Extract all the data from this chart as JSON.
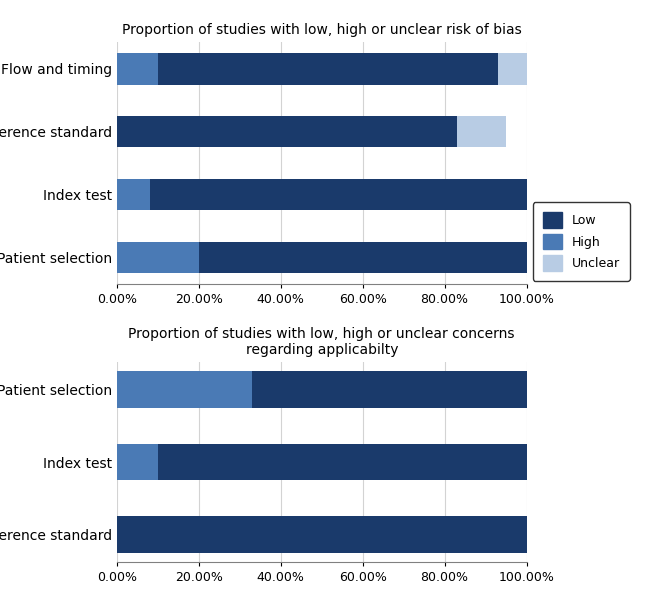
{
  "top_title": "Proportion of studies with low, high or unclear risk of bias",
  "bottom_title": "Proportion of studies with low, high or unclear concerns\nregarding applicabilty",
  "top_categories": [
    "Flow and timing",
    "Reference standard",
    "Index test",
    "Patient selection"
  ],
  "bottom_categories": [
    "Patient selection",
    "Index test",
    "Reference standard"
  ],
  "top_data": {
    "High": [
      10,
      0,
      8,
      20
    ],
    "Low": [
      83,
      83,
      92,
      80
    ],
    "Unclear": [
      7,
      12,
      0,
      0
    ]
  },
  "bottom_data": {
    "High": [
      33,
      10,
      0
    ],
    "Low": [
      67,
      90,
      100
    ],
    "Unclear": [
      0,
      0,
      0
    ]
  },
  "color_low": "#1a3a6b",
  "color_high": "#4a7ab5",
  "color_unclear": "#b8cce4",
  "xlim": [
    0,
    100
  ],
  "xtick_labels": [
    "0.00%",
    "20.00%",
    "40.00%",
    "60.00%",
    "80.00%",
    "100.00%"
  ],
  "xtick_values": [
    0,
    20,
    40,
    60,
    80,
    100
  ],
  "bar_height": 0.5,
  "title_fontsize": 10,
  "label_fontsize": 10,
  "tick_fontsize": 9
}
